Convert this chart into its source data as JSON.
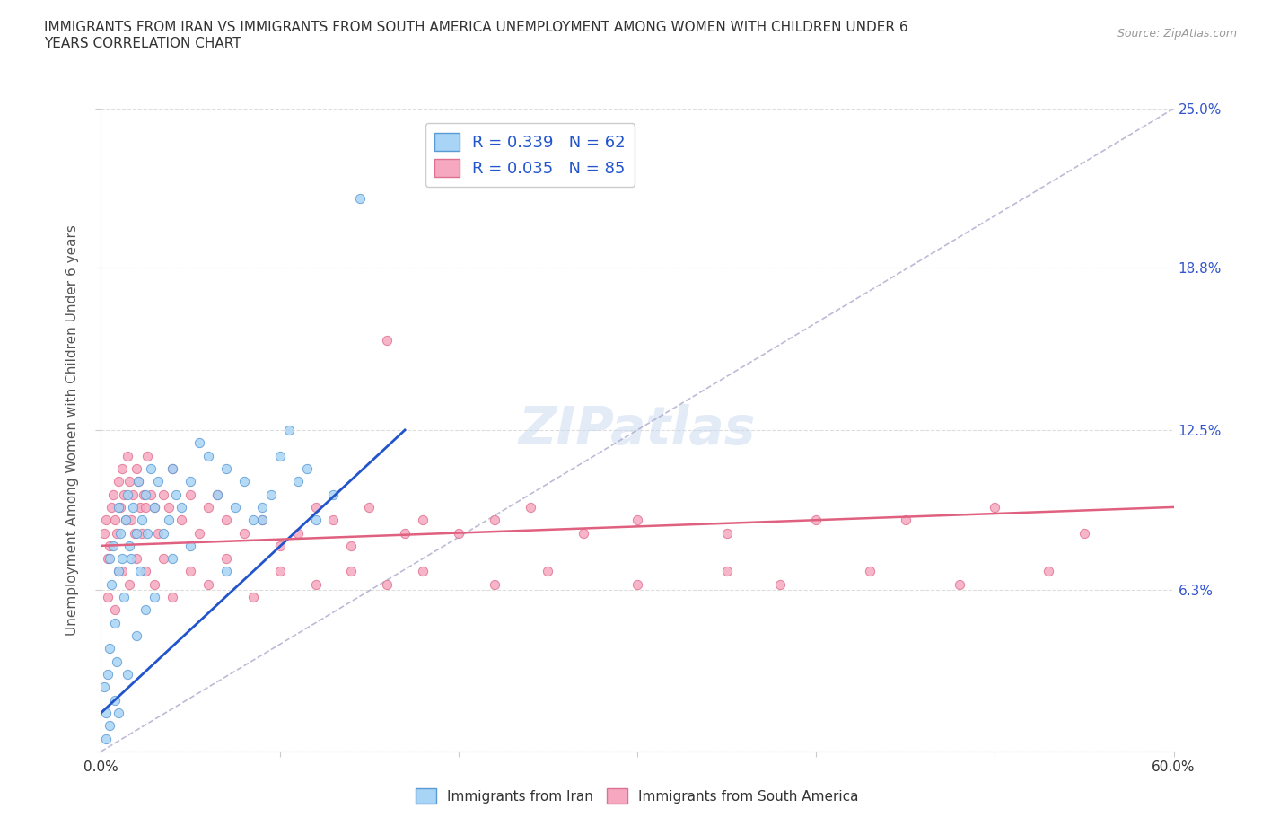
{
  "title": "IMMIGRANTS FROM IRAN VS IMMIGRANTS FROM SOUTH AMERICA UNEMPLOYMENT AMONG WOMEN WITH CHILDREN UNDER 6\nYEARS CORRELATION CHART",
  "source": "Source: ZipAtlas.com",
  "ylabel_label": "Unemployment Among Women with Children Under 6 years",
  "xlim": [
    0.0,
    60.0
  ],
  "ylim": [
    0.0,
    25.0
  ],
  "iran_R": 0.339,
  "iran_N": 62,
  "sa_R": 0.035,
  "sa_N": 85,
  "iran_color": "#a8d4f5",
  "sa_color": "#f5a8c0",
  "iran_edge_color": "#5b9bd5",
  "sa_edge_color": "#e07090",
  "iran_line_color": "#2255cc",
  "sa_line_color": "#e06080",
  "gray_dash_color": "#aaaacc",
  "legend_label_iran": "Immigrants from Iran",
  "legend_label_sa": "Immigrants from South America",
  "iran_x": [
    0.2,
    0.3,
    0.4,
    0.5,
    0.5,
    0.6,
    0.7,
    0.8,
    0.9,
    1.0,
    1.0,
    1.1,
    1.2,
    1.3,
    1.4,
    1.5,
    1.6,
    1.7,
    1.8,
    2.0,
    2.1,
    2.2,
    2.3,
    2.5,
    2.6,
    2.8,
    3.0,
    3.2,
    3.5,
    3.8,
    4.0,
    4.2,
    4.5,
    5.0,
    5.5,
    6.0,
    6.5,
    7.0,
    7.5,
    8.0,
    8.5,
    9.0,
    9.5,
    10.0,
    10.5,
    11.0,
    11.5,
    12.0,
    13.0,
    14.5,
    0.3,
    0.5,
    0.8,
    1.0,
    1.5,
    2.0,
    2.5,
    3.0,
    4.0,
    5.0,
    7.0,
    9.0
  ],
  "iran_y": [
    2.5,
    1.5,
    3.0,
    4.0,
    7.5,
    6.5,
    8.0,
    5.0,
    3.5,
    7.0,
    9.5,
    8.5,
    7.5,
    6.0,
    9.0,
    10.0,
    8.0,
    7.5,
    9.5,
    8.5,
    10.5,
    7.0,
    9.0,
    10.0,
    8.5,
    11.0,
    9.5,
    10.5,
    8.5,
    9.0,
    11.0,
    10.0,
    9.5,
    10.5,
    12.0,
    11.5,
    10.0,
    11.0,
    9.5,
    10.5,
    9.0,
    9.5,
    10.0,
    11.5,
    12.5,
    10.5,
    11.0,
    9.0,
    10.0,
    21.5,
    0.5,
    1.0,
    2.0,
    1.5,
    3.0,
    4.5,
    5.5,
    6.0,
    7.5,
    8.0,
    7.0,
    9.0
  ],
  "sa_x": [
    0.2,
    0.3,
    0.4,
    0.5,
    0.6,
    0.7,
    0.8,
    0.9,
    1.0,
    1.0,
    1.1,
    1.2,
    1.3,
    1.4,
    1.5,
    1.6,
    1.7,
    1.8,
    1.9,
    2.0,
    2.1,
    2.2,
    2.3,
    2.4,
    2.5,
    2.6,
    2.8,
    3.0,
    3.2,
    3.5,
    3.8,
    4.0,
    4.5,
    5.0,
    5.5,
    6.0,
    6.5,
    7.0,
    8.0,
    9.0,
    10.0,
    11.0,
    12.0,
    13.0,
    14.0,
    15.0,
    16.0,
    17.0,
    18.0,
    20.0,
    22.0,
    24.0,
    27.0,
    30.0,
    35.0,
    40.0,
    45.0,
    50.0,
    55.0,
    0.4,
    0.8,
    1.2,
    1.6,
    2.0,
    2.5,
    3.0,
    3.5,
    4.0,
    5.0,
    6.0,
    7.0,
    8.5,
    10.0,
    12.0,
    14.0,
    16.0,
    18.0,
    22.0,
    25.0,
    30.0,
    35.0,
    38.0,
    43.0,
    48.0,
    53.0
  ],
  "sa_y": [
    8.5,
    9.0,
    7.5,
    8.0,
    9.5,
    10.0,
    9.0,
    8.5,
    10.5,
    7.0,
    9.5,
    11.0,
    10.0,
    9.0,
    11.5,
    10.5,
    9.0,
    10.0,
    8.5,
    11.0,
    10.5,
    9.5,
    8.5,
    10.0,
    9.5,
    11.5,
    10.0,
    9.5,
    8.5,
    10.0,
    9.5,
    11.0,
    9.0,
    10.0,
    8.5,
    9.5,
    10.0,
    9.0,
    8.5,
    9.0,
    8.0,
    8.5,
    9.5,
    9.0,
    8.0,
    9.5,
    16.0,
    8.5,
    9.0,
    8.5,
    9.0,
    9.5,
    8.5,
    9.0,
    8.5,
    9.0,
    9.0,
    9.5,
    8.5,
    6.0,
    5.5,
    7.0,
    6.5,
    7.5,
    7.0,
    6.5,
    7.5,
    6.0,
    7.0,
    6.5,
    7.5,
    6.0,
    7.0,
    6.5,
    7.0,
    6.5,
    7.0,
    6.5,
    7.0,
    6.5,
    7.0,
    6.5,
    7.0,
    6.5,
    7.0
  ],
  "iran_trendline_x0": 0.0,
  "iran_trendline_y0": 1.5,
  "iran_trendline_x1": 17.0,
  "iran_trendline_y1": 12.5,
  "sa_trendline_x0": 0.0,
  "sa_trendline_y0": 8.0,
  "sa_trendline_x1": 60.0,
  "sa_trendline_y1": 9.5,
  "gray_dash_x0": 0.0,
  "gray_dash_y0": 0.0,
  "gray_dash_x1": 60.0,
  "gray_dash_y1": 25.0
}
